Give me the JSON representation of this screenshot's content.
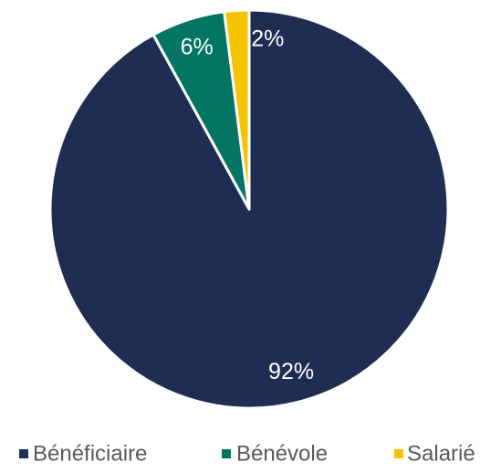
{
  "chart_data": {
    "type": "pie",
    "categories": [
      "Bénéficiaire",
      "Bénévole",
      "Salarié"
    ],
    "values": [
      92,
      6,
      2
    ],
    "value_labels": [
      "92%",
      "6%",
      "2%"
    ],
    "colors": [
      "#1f2d52",
      "#047562",
      "#f5c400"
    ],
    "legend": "bottom"
  }
}
